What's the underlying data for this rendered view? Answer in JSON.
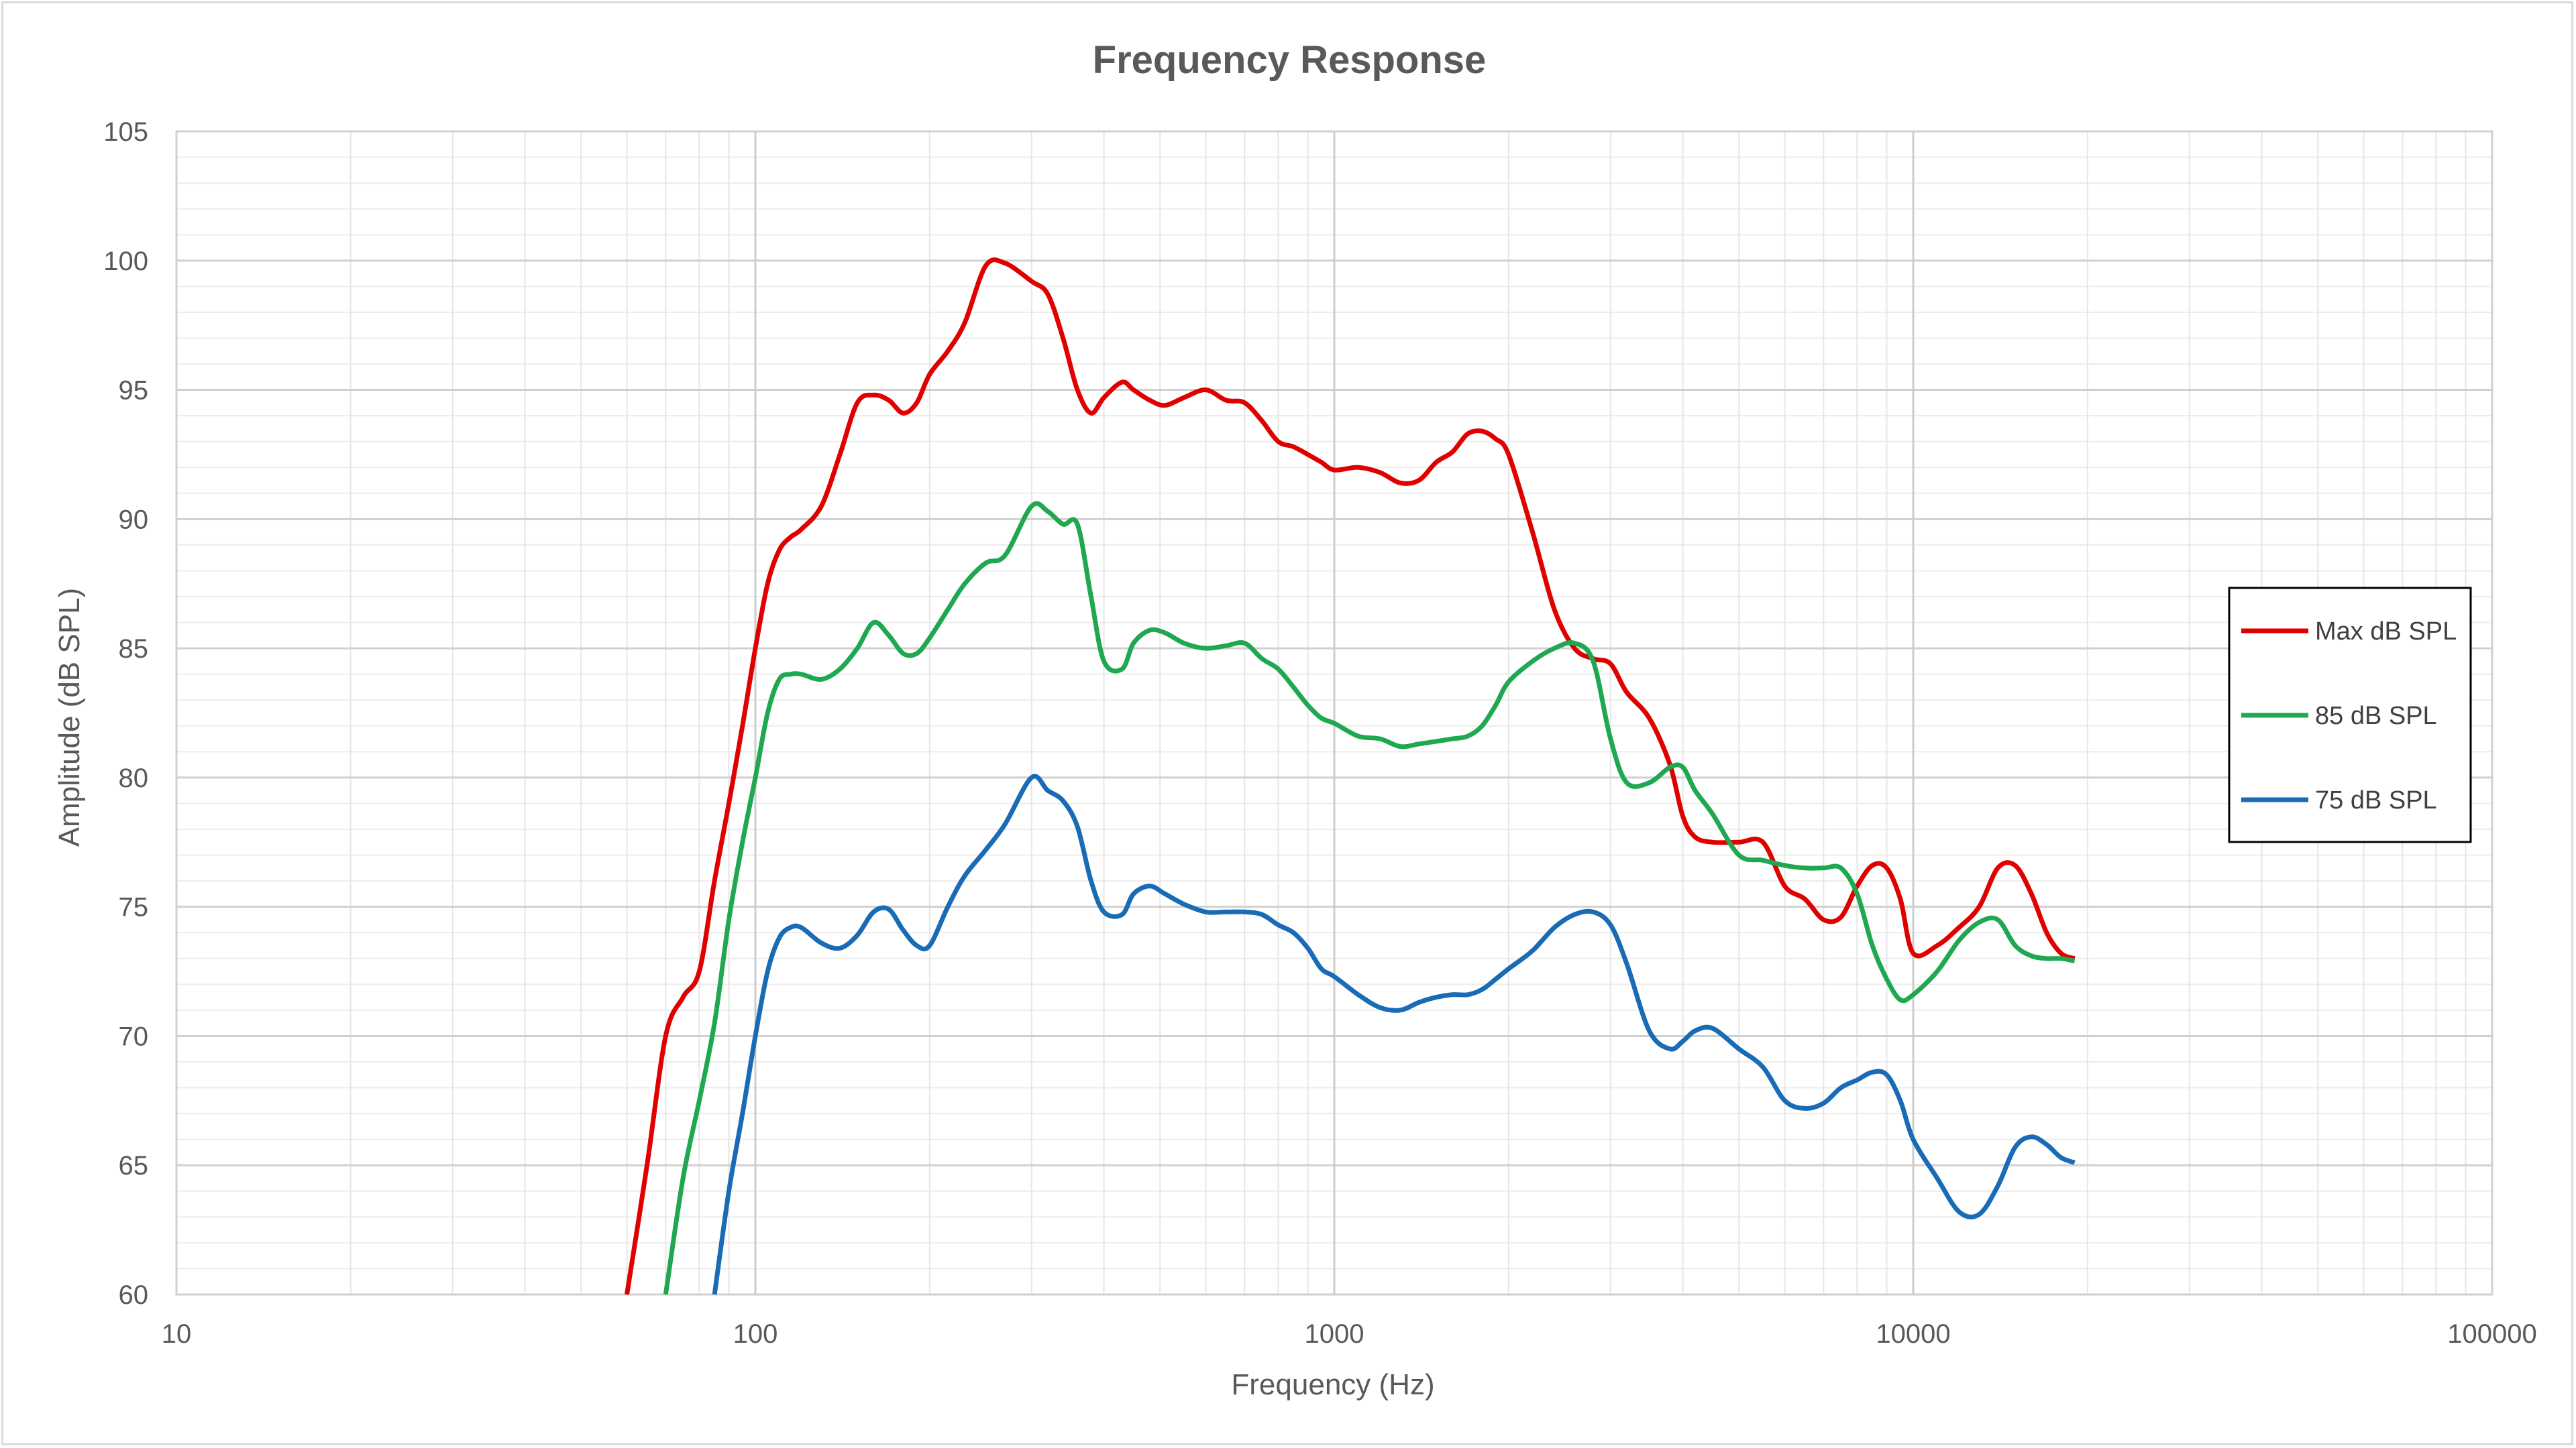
{
  "chart_data": {
    "type": "line",
    "title": "Frequency Response",
    "xlabel": "Frequency (Hz)",
    "ylabel": "Amplitude (dB SPL)",
    "x_scale": "log",
    "xlim": [
      10,
      100000
    ],
    "ylim": [
      60,
      105
    ],
    "x_ticks": [
      "10",
      "100",
      "1000",
      "10000",
      "100000"
    ],
    "y_ticks": [
      "60",
      "65",
      "70",
      "75",
      "80",
      "85",
      "90",
      "95",
      "100",
      "105"
    ],
    "grid": true,
    "legend_position": "right",
    "series": [
      {
        "name": "Max dB SPL",
        "color": "#e00000",
        "x": [
          60,
          65,
          70,
          75,
          80,
          85,
          90,
          95,
          100,
          105,
          110,
          115,
          120,
          130,
          140,
          150,
          160,
          170,
          180,
          190,
          200,
          215,
          230,
          250,
          270,
          300,
          320,
          340,
          360,
          380,
          400,
          430,
          450,
          480,
          510,
          550,
          600,
          650,
          700,
          750,
          800,
          850,
          900,
          950,
          1000,
          1100,
          1200,
          1300,
          1400,
          1500,
          1600,
          1700,
          1800,
          1900,
          2000,
          2200,
          2400,
          2600,
          2800,
          3000,
          3200,
          3500,
          3800,
          4000,
          4200,
          4500,
          5000,
          5500,
          6000,
          6500,
          7000,
          7500,
          8000,
          8500,
          9000,
          9500,
          10000,
          11000,
          12000,
          13000,
          14000,
          15000,
          16000,
          17000,
          18000,
          19000
        ],
        "y": [
          60,
          65,
          70,
          71.5,
          72.5,
          76,
          79,
          82,
          85,
          87.5,
          88.8,
          89.3,
          89.6,
          90.5,
          92.5,
          94.5,
          94.8,
          94.6,
          94.1,
          94.5,
          95.6,
          96.5,
          97.6,
          99.8,
          99.9,
          99.2,
          98.7,
          97,
          95,
          94.1,
          94.7,
          95.3,
          95,
          94.6,
          94.4,
          94.7,
          95,
          94.6,
          94.5,
          93.8,
          93,
          92.8,
          92.5,
          92.2,
          91.9,
          92,
          91.8,
          91.4,
          91.5,
          92.2,
          92.6,
          93.3,
          93.4,
          93.1,
          92.5,
          89.5,
          86.5,
          85,
          84.6,
          84.4,
          83.3,
          82.3,
          80.5,
          78.5,
          77.7,
          77.5,
          77.5,
          77.5,
          75.8,
          75.3,
          74.5,
          74.6,
          75.8,
          76.6,
          76.5,
          75.3,
          73.2,
          73.5,
          74.2,
          75,
          76.5,
          76.6,
          75.5,
          74,
          73.2,
          73
        ]
      },
      {
        "name": "85 dB SPL",
        "color": "#1fa850",
        "x": [
          70,
          75,
          80,
          85,
          90,
          95,
          100,
          105,
          110,
          115,
          120,
          130,
          140,
          150,
          160,
          170,
          180,
          190,
          200,
          215,
          230,
          250,
          270,
          300,
          320,
          340,
          360,
          380,
          400,
          430,
          450,
          480,
          510,
          550,
          600,
          650,
          700,
          750,
          800,
          850,
          900,
          950,
          1000,
          1100,
          1200,
          1300,
          1400,
          1500,
          1600,
          1700,
          1800,
          1900,
          2000,
          2200,
          2400,
          2600,
          2800,
          3000,
          3200,
          3500,
          3800,
          4000,
          4200,
          4500,
          5000,
          5500,
          6000,
          6500,
          7000,
          7500,
          8000,
          8500,
          9000,
          9500,
          10000,
          11000,
          12000,
          13000,
          14000,
          15000,
          16000,
          17000,
          18000,
          19000
        ],
        "y": [
          60,
          64.5,
          67.5,
          70.5,
          74.5,
          77.5,
          80,
          82.5,
          83.8,
          84,
          84,
          83.8,
          84.2,
          85,
          86,
          85.5,
          84.8,
          84.8,
          85.4,
          86.5,
          87.5,
          88.3,
          88.6,
          90.5,
          90.3,
          89.8,
          89.8,
          87,
          84.5,
          84.2,
          85.2,
          85.7,
          85.6,
          85.2,
          85,
          85.1,
          85.2,
          84.6,
          84.2,
          83.5,
          82.8,
          82.3,
          82.1,
          81.6,
          81.5,
          81.2,
          81.3,
          81.4,
          81.5,
          81.6,
          82,
          82.8,
          83.7,
          84.5,
          85,
          85.2,
          84.5,
          81.5,
          79.8,
          79.8,
          80.4,
          80.4,
          79.5,
          78.6,
          77,
          76.8,
          76.6,
          76.5,
          76.5,
          76.5,
          75.5,
          73.5,
          72.2,
          71.4,
          71.6,
          72.5,
          73.7,
          74.4,
          74.5,
          73.5,
          73.1,
          73,
          73,
          72.9
        ],
        "_": "approximate"
      },
      {
        "name": "75 dB SPL",
        "color": "#1a6bb5",
        "x": [
          85,
          90,
          95,
          100,
          105,
          110,
          115,
          120,
          130,
          140,
          150,
          160,
          170,
          180,
          190,
          200,
          215,
          230,
          250,
          270,
          300,
          320,
          340,
          360,
          380,
          400,
          430,
          450,
          480,
          510,
          550,
          600,
          650,
          700,
          750,
          800,
          850,
          900,
          950,
          1000,
          1100,
          1200,
          1300,
          1400,
          1500,
          1600,
          1700,
          1800,
          1900,
          2000,
          2200,
          2400,
          2600,
          2800,
          3000,
          3200,
          3500,
          3800,
          4000,
          4200,
          4500,
          5000,
          5500,
          6000,
          6500,
          7000,
          7500,
          8000,
          8500,
          9000,
          9500,
          10000,
          11000,
          12000,
          13000,
          14000,
          15000,
          16000,
          17000,
          18000,
          19000
        ],
        "y": [
          60,
          64,
          67,
          70,
          72.5,
          73.8,
          74.2,
          74.2,
          73.6,
          73.4,
          73.9,
          74.8,
          74.9,
          74.1,
          73.5,
          73.5,
          75,
          76.2,
          77.2,
          78.2,
          80,
          79.5,
          79.1,
          78.1,
          76,
          74.8,
          74.7,
          75.5,
          75.8,
          75.5,
          75.1,
          74.8,
          74.8,
          74.8,
          74.7,
          74.3,
          74,
          73.4,
          72.6,
          72.3,
          71.6,
          71.1,
          71,
          71.3,
          71.5,
          71.6,
          71.6,
          71.8,
          72.2,
          72.6,
          73.3,
          74.2,
          74.7,
          74.8,
          74.3,
          72.8,
          70.2,
          69.5,
          69.8,
          70.2,
          70.3,
          69.5,
          68.8,
          67.5,
          67.2,
          67.4,
          68,
          68.3,
          68.6,
          68.5,
          67.5,
          66,
          64.5,
          63.2,
          63.1,
          64.2,
          65.7,
          66.1,
          65.8,
          65.3,
          65.1
        ]
      }
    ]
  }
}
